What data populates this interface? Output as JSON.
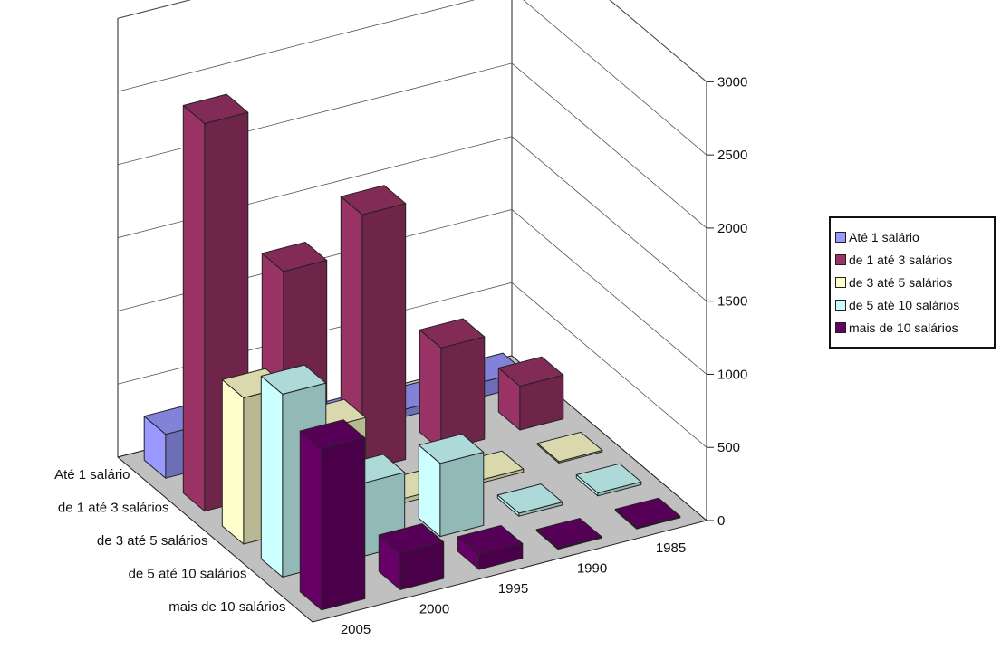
{
  "chart_data": {
    "type": "bar",
    "subtype": "3d-column",
    "title": "",
    "xlabel": "",
    "ylabel": "",
    "ylim": [
      0,
      3000
    ],
    "yticks": [
      "0",
      "500",
      "1000",
      "1500",
      "2000",
      "2500",
      "3000"
    ],
    "categories": [
      "2005",
      "2000",
      "1995",
      "1990",
      "1985"
    ],
    "series": [
      {
        "name": "Até 1 salário",
        "color": "#9999ff",
        "values": [
          300,
          140,
          80,
          50,
          100
        ]
      },
      {
        "name": "de 1 até 3 salários",
        "color": "#993366",
        "values": [
          2650,
          1500,
          1750,
          700,
          300
        ]
      },
      {
        "name": "de 3 até 5 salários",
        "color": "#ffffcc",
        "values": [
          1000,
          650,
          30,
          20,
          10
        ]
      },
      {
        "name": "de 5 até 10 salários",
        "color": "#ccffff",
        "values": [
          1250,
          500,
          500,
          20,
          20
        ]
      },
      {
        "name": "mais de 10 salários",
        "color": "#660066",
        "values": [
          1100,
          250,
          100,
          10,
          10
        ]
      }
    ],
    "grid": true,
    "legend": "right"
  }
}
